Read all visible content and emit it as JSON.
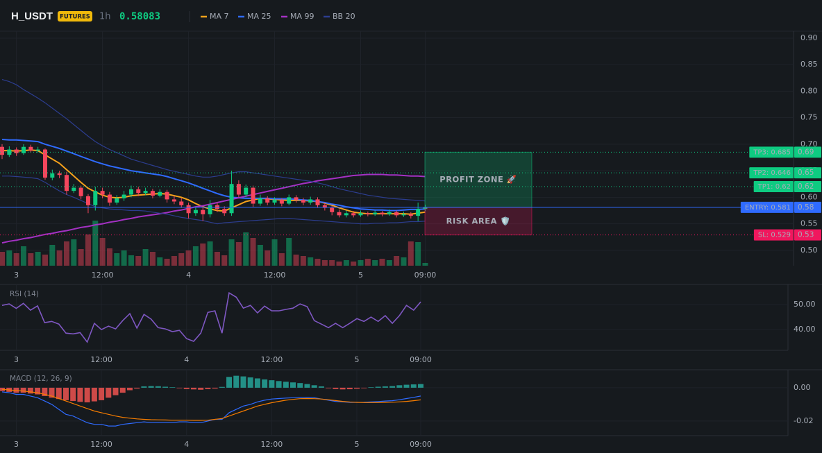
{
  "header": {
    "symbol": "H_USDT",
    "badge": "FUTURES",
    "interval": "1h",
    "price": 0.58083
  },
  "chart_data": [
    {
      "type": "candlestick",
      "categories": [
        null,
        null,
        "3",
        null,
        null,
        null,
        null,
        null,
        null,
        null,
        null,
        null,
        null,
        null,
        "12:00",
        null,
        null,
        null,
        null,
        null,
        null,
        null,
        null,
        null,
        null,
        null,
        "4",
        null,
        null,
        null,
        null,
        null,
        null,
        null,
        null,
        null,
        null,
        null,
        "12:00",
        null,
        null,
        null,
        null,
        null,
        null,
        null,
        null,
        null,
        null,
        null,
        "5",
        null,
        null,
        null,
        null,
        null,
        null,
        null,
        null,
        "09:00"
      ],
      "open": [
        0.695,
        0.68,
        0.69,
        0.683,
        0.695,
        0.688,
        0.69,
        0.637,
        0.645,
        0.642,
        0.612,
        0.618,
        0.602,
        0.585,
        0.612,
        0.605,
        0.59,
        0.598,
        0.605,
        0.615,
        0.608,
        0.612,
        0.603,
        0.61,
        0.596,
        0.592,
        0.585,
        0.57,
        0.576,
        0.568,
        0.585,
        0.578,
        0.57,
        0.625,
        0.605,
        0.618,
        0.588,
        0.598,
        0.59,
        0.595,
        0.588,
        0.6,
        0.595,
        0.59,
        0.596,
        0.585,
        0.58,
        0.572,
        0.566,
        0.57,
        0.566,
        0.57,
        0.568,
        0.571,
        0.568,
        0.572,
        0.566,
        0.568,
        0.565,
        0.578
      ],
      "high": [
        0.7,
        0.696,
        0.694,
        0.7,
        0.699,
        0.695,
        0.692,
        0.652,
        0.65,
        0.648,
        0.625,
        0.622,
        0.606,
        0.62,
        0.618,
        0.61,
        0.604,
        0.612,
        0.622,
        0.62,
        0.618,
        0.616,
        0.615,
        0.614,
        0.602,
        0.598,
        0.59,
        0.582,
        0.58,
        0.595,
        0.59,
        0.583,
        0.65,
        0.632,
        0.624,
        0.622,
        0.605,
        0.602,
        0.6,
        0.598,
        0.605,
        0.604,
        0.599,
        0.601,
        0.6,
        0.59,
        0.584,
        0.577,
        0.575,
        0.574,
        0.575,
        0.573,
        0.575,
        0.574,
        0.577,
        0.575,
        0.573,
        0.572,
        0.59,
        0.586
      ],
      "low": [
        0.672,
        0.676,
        0.678,
        0.68,
        0.684,
        0.684,
        0.633,
        0.632,
        0.636,
        0.605,
        0.608,
        0.596,
        0.57,
        0.575,
        0.598,
        0.584,
        0.586,
        0.593,
        0.6,
        0.602,
        0.604,
        0.598,
        0.6,
        0.59,
        0.587,
        0.58,
        0.56,
        0.565,
        0.555,
        0.562,
        0.572,
        0.565,
        0.565,
        0.6,
        0.6,
        0.582,
        0.584,
        0.585,
        0.586,
        0.583,
        0.585,
        0.59,
        0.585,
        0.586,
        0.58,
        0.575,
        0.566,
        0.562,
        0.562,
        0.562,
        0.563,
        0.564,
        0.565,
        0.564,
        0.565,
        0.562,
        0.563,
        0.56,
        0.555,
        0.574
      ],
      "close": [
        0.68,
        0.69,
        0.683,
        0.695,
        0.688,
        0.69,
        0.637,
        0.645,
        0.642,
        0.612,
        0.618,
        0.602,
        0.585,
        0.612,
        0.605,
        0.59,
        0.598,
        0.605,
        0.615,
        0.608,
        0.612,
        0.603,
        0.61,
        0.596,
        0.592,
        0.585,
        0.57,
        0.576,
        0.568,
        0.585,
        0.578,
        0.57,
        0.625,
        0.605,
        0.618,
        0.588,
        0.598,
        0.59,
        0.595,
        0.588,
        0.6,
        0.595,
        0.59,
        0.596,
        0.585,
        0.58,
        0.572,
        0.566,
        0.57,
        0.566,
        0.57,
        0.568,
        0.571,
        0.568,
        0.572,
        0.566,
        0.568,
        0.565,
        0.578,
        0.581
      ],
      "volume": [
        20,
        22,
        18,
        28,
        18,
        20,
        16,
        30,
        22,
        35,
        38,
        24,
        45,
        65,
        40,
        25,
        18,
        22,
        15,
        14,
        24,
        20,
        12,
        10,
        14,
        18,
        22,
        28,
        32,
        35,
        20,
        15,
        38,
        34,
        48,
        40,
        30,
        22,
        38,
        18,
        40,
        16,
        14,
        12,
        10,
        8,
        8,
        6,
        8,
        6,
        8,
        10,
        8,
        10,
        8,
        14,
        12,
        35,
        34,
        4
      ],
      "up_color": "#0ecb81",
      "down_color": "#f6465d",
      "series": [
        {
          "name": "MA 7",
          "color": "#f7a21b",
          "values": [
            0.688,
            0.688,
            0.687,
            0.688,
            0.689,
            0.688,
            0.68,
            0.672,
            0.664,
            0.652,
            0.64,
            0.628,
            0.617,
            0.61,
            0.604,
            0.6,
            0.599,
            0.6,
            0.603,
            0.604,
            0.605,
            0.606,
            0.607,
            0.606,
            0.603,
            0.6,
            0.595,
            0.588,
            0.582,
            0.578,
            0.575,
            0.574,
            0.58,
            0.586,
            0.592,
            0.595,
            0.598,
            0.597,
            0.596,
            0.595,
            0.594,
            0.594,
            0.594,
            0.593,
            0.592,
            0.589,
            0.585,
            0.58,
            0.576,
            0.572,
            0.57,
            0.569,
            0.569,
            0.569,
            0.569,
            0.569,
            0.569,
            0.568,
            0.57,
            0.572
          ]
        },
        {
          "name": "MA 25",
          "color": "#2f6bff",
          "values": [
            0.709,
            0.708,
            0.708,
            0.707,
            0.706,
            0.705,
            0.7,
            0.696,
            0.692,
            0.687,
            0.682,
            0.677,
            0.672,
            0.667,
            0.663,
            0.659,
            0.656,
            0.653,
            0.65,
            0.648,
            0.646,
            0.644,
            0.642,
            0.639,
            0.635,
            0.631,
            0.627,
            0.622,
            0.617,
            0.612,
            0.607,
            0.603,
            0.6,
            0.599,
            0.598,
            0.598,
            0.598,
            0.598,
            0.597,
            0.597,
            0.597,
            0.596,
            0.595,
            0.594,
            0.592,
            0.59,
            0.587,
            0.585,
            0.582,
            0.58,
            0.578,
            0.577,
            0.576,
            0.576,
            0.575,
            0.575,
            0.576,
            0.577,
            0.577,
            0.578
          ]
        },
        {
          "name": "MA 99",
          "color": "#a431c4",
          "values": [
            0.514,
            0.517,
            0.519,
            0.522,
            0.524,
            0.527,
            0.53,
            0.532,
            0.535,
            0.537,
            0.54,
            0.543,
            0.545,
            0.548,
            0.55,
            0.553,
            0.555,
            0.558,
            0.56,
            0.563,
            0.565,
            0.567,
            0.569,
            0.571,
            0.574,
            0.576,
            0.579,
            0.582,
            0.584,
            0.587,
            0.59,
            0.593,
            0.596,
            0.599,
            0.602,
            0.605,
            0.608,
            0.611,
            0.614,
            0.617,
            0.62,
            0.623,
            0.626,
            0.628,
            0.631,
            0.633,
            0.635,
            0.637,
            0.639,
            0.641,
            0.642,
            0.643,
            0.643,
            0.643,
            0.642,
            0.642,
            0.641,
            0.64,
            0.64,
            0.639
          ]
        },
        {
          "name": "BB 20",
          "color": "#2c3d8f",
          "upper": [
            0.822,
            0.818,
            0.812,
            0.803,
            0.795,
            0.787,
            0.778,
            0.768,
            0.758,
            0.748,
            0.737,
            0.726,
            0.715,
            0.705,
            0.697,
            0.69,
            0.684,
            0.678,
            0.672,
            0.668,
            0.664,
            0.66,
            0.656,
            0.652,
            0.649,
            0.646,
            0.643,
            0.64,
            0.638,
            0.638,
            0.64,
            0.643,
            0.646,
            0.648,
            0.648,
            0.646,
            0.644,
            0.642,
            0.64,
            0.638,
            0.636,
            0.634,
            0.632,
            0.63,
            0.627,
            0.624,
            0.62,
            0.616,
            0.613,
            0.61,
            0.607,
            0.604,
            0.602,
            0.6,
            0.598,
            0.597,
            0.596,
            0.595,
            0.594,
            0.593
          ],
          "lower": [
            0.64,
            0.64,
            0.639,
            0.638,
            0.637,
            0.635,
            0.628,
            0.62,
            0.612,
            0.605,
            0.6,
            0.594,
            0.588,
            0.582,
            0.58,
            0.578,
            0.577,
            0.576,
            0.575,
            0.575,
            0.574,
            0.572,
            0.57,
            0.568,
            0.565,
            0.562,
            0.56,
            0.558,
            0.556,
            0.553,
            0.55,
            0.552,
            0.553,
            0.554,
            0.555,
            0.556,
            0.557,
            0.558,
            0.559,
            0.56,
            0.56,
            0.559,
            0.558,
            0.557,
            0.556,
            0.555,
            0.554,
            0.553,
            0.552,
            0.551,
            0.55,
            0.55,
            0.551,
            0.551,
            0.552,
            0.552,
            0.553,
            0.554,
            0.554,
            0.555
          ]
        }
      ],
      "ylim": [
        0.471,
        0.913
      ],
      "yticks": [
        {
          "value": 0.9,
          "label": "0.90"
        },
        {
          "value": 0.85,
          "label": "0.85"
        },
        {
          "value": 0.8,
          "label": "0.80"
        },
        {
          "value": 0.75,
          "label": "0.75"
        },
        {
          "value": 0.7,
          "label": "0.70"
        },
        {
          "value": 0.65,
          "label": "0.65"
        },
        {
          "value": 0.6,
          "label": "0.60"
        },
        {
          "value": 0.55,
          "label": "0.55"
        },
        {
          "value": 0.5,
          "label": "0.50"
        }
      ],
      "grid": true,
      "levels": [
        {
          "label": "TP3: 0.685",
          "value": 0.685,
          "value_label": "0.69",
          "color": "#0ecb81"
        },
        {
          "label": "TP2: 0.646",
          "value": 0.646,
          "value_label": "0.65",
          "color": "#0ecb81"
        },
        {
          "label": "TP1: 0.62",
          "value": 0.62,
          "value_label": "0.62",
          "color": "#0ecb81"
        },
        {
          "label": "ENTRY: 0.581",
          "value": 0.581,
          "value_label": "0.58",
          "color": "#2f6bff"
        },
        {
          "label": "SL: 0.529",
          "value": 0.529,
          "value_label": "0.53",
          "color": "#f0175e"
        }
      ],
      "zones": [
        {
          "label": "PROFIT ZONE 🚀",
          "top": 0.685,
          "bottom": 0.581,
          "color": "#0ecb81"
        },
        {
          "label": "RISK AREA 🛡️",
          "top": 0.581,
          "bottom": 0.529,
          "color": "#f0175e"
        }
      ]
    },
    {
      "type": "line",
      "title": "RSI (14)",
      "color": "#7e57c2",
      "values": [
        49.7,
        50.3,
        48.5,
        50.5,
        47.8,
        49.5,
        42.8,
        43.3,
        42.2,
        38.6,
        38.3,
        38.8,
        35.0,
        42.5,
        40.0,
        41.4,
        40.3,
        43.6,
        46.4,
        40.6,
        46.1,
        44.2,
        40.8,
        40.3,
        39.2,
        39.7,
        36.4,
        35.3,
        38.6,
        46.9,
        47.5,
        38.6,
        54.7,
        53.0,
        48.6,
        49.7,
        46.7,
        49.4,
        47.5,
        47.5,
        48.1,
        48.6,
        50.3,
        49.2,
        43.6,
        42.2,
        40.8,
        42.5,
        40.8,
        42.5,
        44.4,
        43.3,
        45.0,
        43.3,
        45.6,
        42.5,
        45.6,
        49.7,
        47.8,
        51.1
      ],
      "ylim": [
        31.7,
        58.1
      ],
      "yticks": [
        {
          "value": 50,
          "label": "50.00"
        },
        {
          "value": 40,
          "label": "40.00"
        }
      ]
    },
    {
      "type": "macd",
      "title": "MACD (12, 26, 9)",
      "histogram": [
        -0.002,
        -0.0025,
        -0.003,
        -0.003,
        -0.0035,
        -0.004,
        -0.005,
        -0.006,
        -0.0068,
        -0.0075,
        -0.008,
        -0.0085,
        -0.0088,
        -0.0082,
        -0.0075,
        -0.006,
        -0.0045,
        -0.003,
        -0.0015,
        -0.0005,
        0.0008,
        0.001,
        0.0009,
        0.0006,
        0.0003,
        -0.0003,
        -0.0008,
        -0.001,
        -0.0012,
        -0.0008,
        -0.0005,
        0.0005,
        0.0065,
        0.0072,
        0.0068,
        0.0062,
        0.0056,
        0.005,
        0.0045,
        0.004,
        0.0036,
        0.0032,
        0.0028,
        0.0022,
        0.0015,
        0.0008,
        -0.0003,
        -0.0008,
        -0.001,
        -0.0009,
        -0.0006,
        -0.0003,
        0.0003,
        0.0006,
        0.0008,
        0.001,
        0.0015,
        0.0018,
        0.002,
        0.0022
      ],
      "macd": [
        -0.0025,
        -0.003,
        -0.004,
        -0.004,
        -0.005,
        -0.006,
        -0.008,
        -0.01,
        -0.013,
        -0.016,
        -0.017,
        -0.019,
        -0.021,
        -0.022,
        -0.022,
        -0.023,
        -0.023,
        -0.022,
        -0.0215,
        -0.021,
        -0.0205,
        -0.021,
        -0.021,
        -0.021,
        -0.021,
        -0.0205,
        -0.0205,
        -0.021,
        -0.021,
        -0.02,
        -0.019,
        -0.019,
        -0.015,
        -0.013,
        -0.011,
        -0.01,
        -0.0085,
        -0.0075,
        -0.0068,
        -0.0065,
        -0.0062,
        -0.006,
        -0.0058,
        -0.0058,
        -0.006,
        -0.0068,
        -0.0075,
        -0.0082,
        -0.0085,
        -0.0088,
        -0.0088,
        -0.0087,
        -0.0085,
        -0.0083,
        -0.008,
        -0.0078,
        -0.0072,
        -0.0065,
        -0.0058,
        -0.005
      ],
      "signal": [
        -0.001,
        -0.0013,
        -0.0017,
        -0.002,
        -0.0025,
        -0.003,
        -0.004,
        -0.005,
        -0.0065,
        -0.008,
        -0.0095,
        -0.011,
        -0.0125,
        -0.014,
        -0.015,
        -0.016,
        -0.017,
        -0.0178,
        -0.0183,
        -0.0187,
        -0.019,
        -0.0192,
        -0.0193,
        -0.0194,
        -0.0195,
        -0.0195,
        -0.0195,
        -0.0196,
        -0.0196,
        -0.0195,
        -0.019,
        -0.0185,
        -0.017,
        -0.0155,
        -0.014,
        -0.0125,
        -0.011,
        -0.01,
        -0.009,
        -0.0082,
        -0.0075,
        -0.007,
        -0.0066,
        -0.0065,
        -0.0066,
        -0.0068,
        -0.0072,
        -0.0077,
        -0.0082,
        -0.0086,
        -0.0088,
        -0.0089,
        -0.0089,
        -0.0089,
        -0.0088,
        -0.0087,
        -0.0085,
        -0.0082,
        -0.0078,
        -0.0073
      ],
      "up_color": "#26a69a",
      "down_color": "#ef5350",
      "macd_color": "#2f6bff",
      "signal_color": "#f57c00",
      "ylim": [
        -0.0288,
        0.0108
      ],
      "yticks": [
        {
          "value": 0,
          "label": "0.00"
        },
        {
          "value": -0.02,
          "label": "-0.02"
        }
      ]
    }
  ]
}
